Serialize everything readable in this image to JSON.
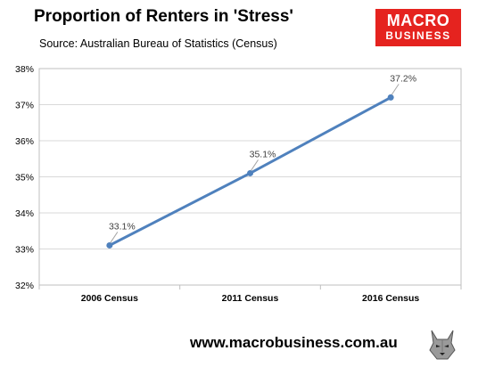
{
  "header": {
    "title": "Proportion of Renters in 'Stress'",
    "subtitle": "Source: Australian Bureau of Statistics (Census)"
  },
  "logo": {
    "line1": "MACRO",
    "line2": "BUSINESS",
    "color": "#e5231f"
  },
  "footer": {
    "url": "www.macrobusiness.com.au",
    "emblem_icon": "wolf-icon"
  },
  "chart_data": {
    "type": "line",
    "title": "Proportion of Renters in 'Stress'",
    "xlabel": "",
    "ylabel": "",
    "categories": [
      "2006 Census",
      "2011 Census",
      "2016 Census"
    ],
    "series": [
      {
        "values": [
          33.1,
          35.1,
          37.2
        ],
        "data_labels": [
          "33.1%",
          "35.1%",
          "37.2%"
        ],
        "color": "#4f81bd"
      }
    ],
    "ylim": [
      32,
      38
    ],
    "yticks": [
      32,
      33,
      34,
      35,
      36,
      37,
      38
    ],
    "ytick_labels": [
      "32%",
      "33%",
      "34%",
      "35%",
      "36%",
      "37%",
      "38%"
    ],
    "grid": true,
    "legend": "none"
  }
}
